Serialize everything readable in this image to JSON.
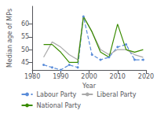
{
  "chart_data": {
    "type": "line",
    "xlabel": "Year",
    "ylabel": "Median age of MPs",
    "x": [
      1984,
      1987,
      1990,
      1993,
      1996,
      1998,
      2001,
      2004,
      2007,
      2010,
      2013,
      2016,
      2019
    ],
    "series": [
      {
        "name": "Labour Party",
        "color": "#5b8dd9",
        "line_style": "dashed",
        "marker": "circle",
        "values": [
          44,
          43,
          42,
          44,
          43,
          63,
          48,
          46,
          47,
          51,
          52,
          46,
          46
        ]
      },
      {
        "name": "Liberal Party",
        "color": "#aaaaaa",
        "line_style": "solid",
        "marker": "none",
        "values": [
          47,
          53,
          51,
          48,
          46,
          63,
          57,
          50,
          48,
          50,
          50,
          48,
          47
        ]
      },
      {
        "name": "National Party",
        "color": "#3a8c00",
        "line_style": "solid",
        "marker": "none",
        "values": [
          52,
          52,
          49,
          45,
          45,
          63,
          57,
          49,
          47,
          60,
          50,
          49,
          50
        ]
      }
    ],
    "xlim": [
      1980,
      2020
    ],
    "xticks": [
      1980,
      1990,
      2000,
      2010,
      2020
    ],
    "ylim": [
      42,
      67
    ],
    "yticks": [
      45,
      50,
      55,
      60
    ],
    "grid": false,
    "legend": "bottom"
  }
}
